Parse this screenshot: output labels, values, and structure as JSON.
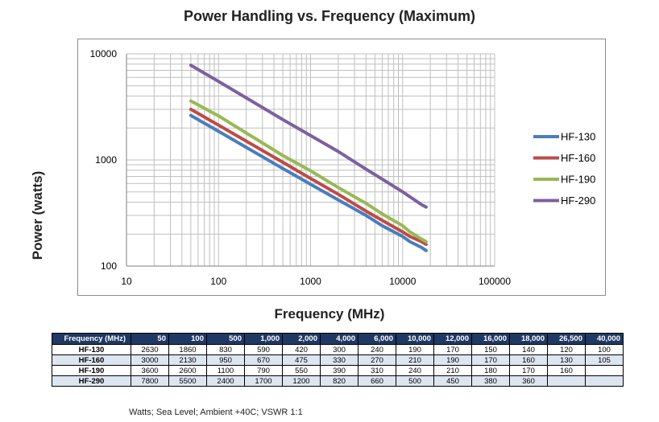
{
  "chart_data": {
    "type": "line",
    "title": "Power Handling vs. Frequency (Maximum)",
    "xlabel": "Frequency (MHz)",
    "ylabel": "Power (watts)",
    "xscale": "log",
    "yscale": "log",
    "xlim": [
      10,
      100000
    ],
    "ylim": [
      100,
      10000
    ],
    "x_ticks": [
      "10",
      "100",
      "1000",
      "10000",
      "100000"
    ],
    "y_ticks": [
      "100",
      "1000",
      "10000"
    ],
    "grid": true,
    "legend": "right",
    "x": [
      50,
      100,
      500,
      1000,
      2000,
      4000,
      6000,
      10000,
      12000,
      16000,
      18000
    ],
    "series": [
      {
        "name": "HF-130",
        "color": "#4a7ebb",
        "values": [
          2630,
          1860,
          830,
          590,
          420,
          300,
          240,
          190,
          170,
          150,
          140
        ]
      },
      {
        "name": "HF-160",
        "color": "#be4b48",
        "values": [
          3000,
          2130,
          950,
          670,
          475,
          330,
          270,
          210,
          190,
          170,
          160
        ]
      },
      {
        "name": "HF-190",
        "color": "#98b954",
        "values": [
          3600,
          2600,
          1100,
          790,
          550,
          390,
          310,
          240,
          210,
          180,
          170
        ]
      },
      {
        "name": "HF-290",
        "color": "#7d60a0",
        "values": [
          7800,
          5500,
          2400,
          1700,
          1200,
          820,
          660,
          500,
          450,
          380,
          360
        ]
      }
    ]
  },
  "table": {
    "header": [
      "Frequency (MHz)",
      "50",
      "100",
      "500",
      "1,000",
      "2,000",
      "4,000",
      "6,000",
      "10,000",
      "12,000",
      "16,000",
      "18,000",
      "26,500",
      "40,000"
    ],
    "rows": [
      [
        "HF-130",
        "2630",
        "1860",
        "830",
        "590",
        "420",
        "300",
        "240",
        "190",
        "170",
        "150",
        "140",
        "120",
        "100"
      ],
      [
        "HF-160",
        "3000",
        "2130",
        "950",
        "670",
        "475",
        "330",
        "270",
        "210",
        "190",
        "170",
        "160",
        "130",
        "105"
      ],
      [
        "HF-190",
        "3600",
        "2600",
        "1100",
        "790",
        "550",
        "390",
        "310",
        "240",
        "210",
        "180",
        "170",
        "160",
        ""
      ],
      [
        "HF-290",
        "7800",
        "5500",
        "2400",
        "1700",
        "1200",
        "820",
        "660",
        "500",
        "450",
        "380",
        "360",
        "",
        ""
      ]
    ]
  },
  "footnote": "Watts; Sea Level; Ambient +40C; VSWR 1:1"
}
